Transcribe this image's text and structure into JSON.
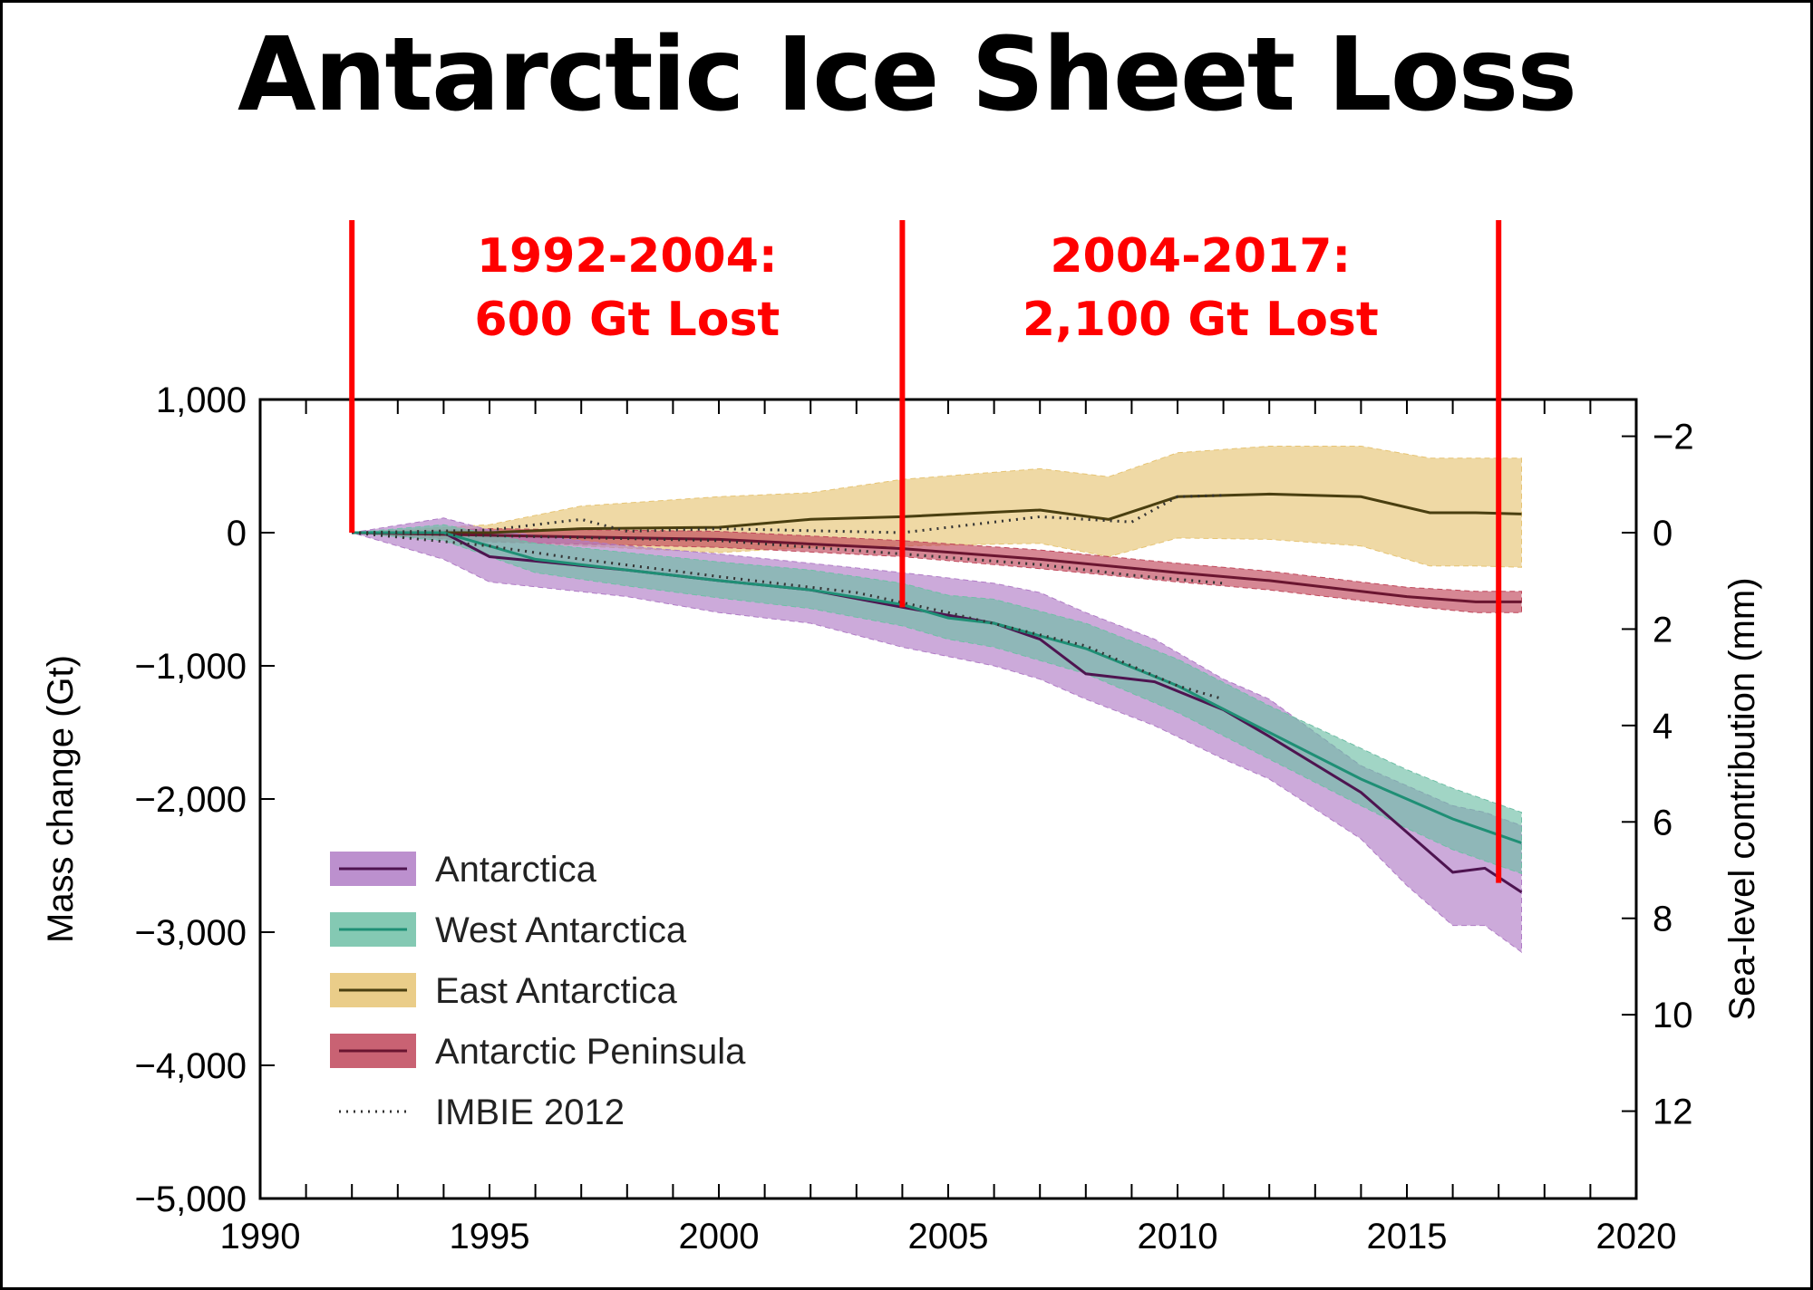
{
  "title": "Antarctic Ice Sheet Loss",
  "chart_data": {
    "type": "area",
    "title": "Antarctic Ice Sheet Loss",
    "xlabel": "",
    "ylabel": "Mass change (Gt)",
    "y2label": "Sea-level contribution (mm)",
    "xlim": [
      1990,
      2020
    ],
    "ylim": [
      -5000,
      1000
    ],
    "xticks": [
      1990,
      1995,
      2000,
      2005,
      2010,
      2015,
      2020
    ],
    "xtick_labels": [
      "1990",
      "1995",
      "2000",
      "2005",
      "2010",
      "2015",
      "2020"
    ],
    "yticks": [
      1000,
      0,
      -1000,
      -2000,
      -3000,
      -4000,
      -5000
    ],
    "ytick_labels": [
      "1,000",
      "0",
      "−1,000",
      "−2,000",
      "−3,000",
      "−4,000",
      "−5,000"
    ],
    "y2ticks": [
      -2,
      0,
      2,
      4,
      6,
      8,
      10,
      12
    ],
    "y2tick_labels": [
      "−2",
      "0",
      "2",
      "4",
      "6",
      "8",
      "10",
      "12"
    ],
    "gt_per_mm": 362,
    "legend_position": "bottom-left",
    "series": [
      {
        "name": "East Antarctica",
        "band_color": "#e6c474",
        "line_color": "#4a3f10",
        "x": [
          1992,
          1995,
          1997,
          2000,
          2002,
          2004,
          2007,
          2008.5,
          2010,
          2012,
          2014,
          2015.5,
          2016.5,
          2017.5
        ],
        "y": [
          0,
          0,
          30,
          40,
          100,
          120,
          170,
          100,
          270,
          290,
          270,
          150,
          150,
          140
        ],
        "upper": [
          0,
          60,
          200,
          270,
          300,
          400,
          480,
          420,
          600,
          650,
          650,
          560,
          560,
          560
        ],
        "lower": [
          0,
          -60,
          -100,
          -150,
          -110,
          -100,
          -80,
          -180,
          -40,
          -50,
          -100,
          -250,
          -250,
          -260
        ]
      },
      {
        "name": "Antarctic Peninsula",
        "band_color": "#c0475a",
        "line_color": "#6a1530",
        "x": [
          1992,
          1995,
          2000,
          2004,
          2007,
          2010,
          2012,
          2015,
          2016.5,
          2017.5
        ],
        "y": [
          0,
          -20,
          -50,
          -120,
          -200,
          -300,
          -360,
          -480,
          -520,
          -520
        ],
        "upper": [
          0,
          30,
          10,
          -60,
          -130,
          -230,
          -290,
          -410,
          -440,
          -440
        ],
        "lower": [
          0,
          -70,
          -110,
          -180,
          -270,
          -370,
          -430,
          -550,
          -600,
          -600
        ]
      },
      {
        "name": "Antarctica",
        "band_color": "#b07cc6",
        "line_color": "#4e1450",
        "x": [
          1992,
          1994,
          1995,
          1998,
          2000,
          2002,
          2004,
          2006,
          2007,
          2008,
          2009.5,
          2011,
          2012,
          2014,
          2015,
          2016,
          2016.7,
          2017.5
        ],
        "y": [
          0,
          0,
          -180,
          -280,
          -360,
          -430,
          -560,
          -680,
          -800,
          -1060,
          -1120,
          -1330,
          -1530,
          -1950,
          -2250,
          -2550,
          -2520,
          -2700
        ],
        "upper": [
          0,
          110,
          20,
          -100,
          -160,
          -230,
          -300,
          -380,
          -450,
          -600,
          -800,
          -1100,
          -1250,
          -1750,
          -1900,
          -2050,
          -2100,
          -2200
        ],
        "lower": [
          0,
          -200,
          -370,
          -480,
          -600,
          -680,
          -860,
          -1000,
          -1100,
          -1250,
          -1450,
          -1700,
          -1850,
          -2300,
          -2650,
          -2950,
          -2950,
          -3150
        ]
      },
      {
        "name": "West Antarctica",
        "band_color": "#6fbfa6",
        "line_color": "#1f8f75",
        "x": [
          1992,
          1994,
          1996,
          1998,
          2000,
          2002,
          2004,
          2005,
          2006,
          2008,
          2010,
          2012,
          2014,
          2015,
          2016,
          2017.5
        ],
        "y": [
          0,
          0,
          -200,
          -280,
          -360,
          -430,
          -540,
          -640,
          -680,
          -870,
          -1150,
          -1500,
          -1850,
          -2000,
          -2150,
          -2330
        ],
        "upper": [
          0,
          60,
          -80,
          -150,
          -220,
          -280,
          -380,
          -470,
          -500,
          -680,
          -950,
          -1300,
          -1620,
          -1780,
          -1920,
          -2100
        ],
        "lower": [
          0,
          -60,
          -300,
          -400,
          -490,
          -570,
          -700,
          -800,
          -860,
          -1060,
          -1350,
          -1700,
          -2050,
          -2220,
          -2380,
          -2560
        ]
      }
    ],
    "imbie_2012": [
      {
        "x": [
          1992,
          1995,
          1997,
          1998,
          2000,
          2004,
          2007,
          2009,
          2010,
          2011
        ],
        "y": [
          0,
          20,
          100,
          10,
          30,
          0,
          120,
          80,
          270,
          280
        ]
      },
      {
        "x": [
          1992,
          1995,
          1997,
          2000,
          2003,
          2005,
          2008,
          2010,
          2011
        ],
        "y": [
          0,
          -100,
          -200,
          -330,
          -450,
          -600,
          -850,
          -1150,
          -1250
        ]
      },
      {
        "x": [
          1992,
          2000,
          2004,
          2007,
          2009,
          2011
        ],
        "y": [
          0,
          -60,
          -160,
          -240,
          -320,
          -380
        ]
      }
    ],
    "legend": [
      {
        "label": "Antarctica",
        "band_color": "#b07cc6",
        "line_color": "#4e1450"
      },
      {
        "label": "West Antarctica",
        "band_color": "#6fbfa6",
        "line_color": "#1f8f75"
      },
      {
        "label": "East Antarctica",
        "band_color": "#e6c474",
        "line_color": "#4a3f10"
      },
      {
        "label": "Antarctic Peninsula",
        "band_color": "#c0475a",
        "line_color": "#6a1530"
      },
      {
        "label": "IMBIE 2012",
        "dotted": true
      }
    ],
    "annotations": {
      "color": "#ff0000",
      "markers": [
        {
          "year": 1992,
          "gt": 0
        },
        {
          "year": 2004,
          "gt": -560
        },
        {
          "year": 2017,
          "gt": -2630
        }
      ],
      "labels": [
        {
          "line1": "1992-2004:",
          "line2": "600 Gt Lost",
          "center_year": 1998
        },
        {
          "line1": "2004-2017:",
          "line2": "2,100 Gt Lost",
          "center_year": 2010.5
        }
      ]
    }
  }
}
